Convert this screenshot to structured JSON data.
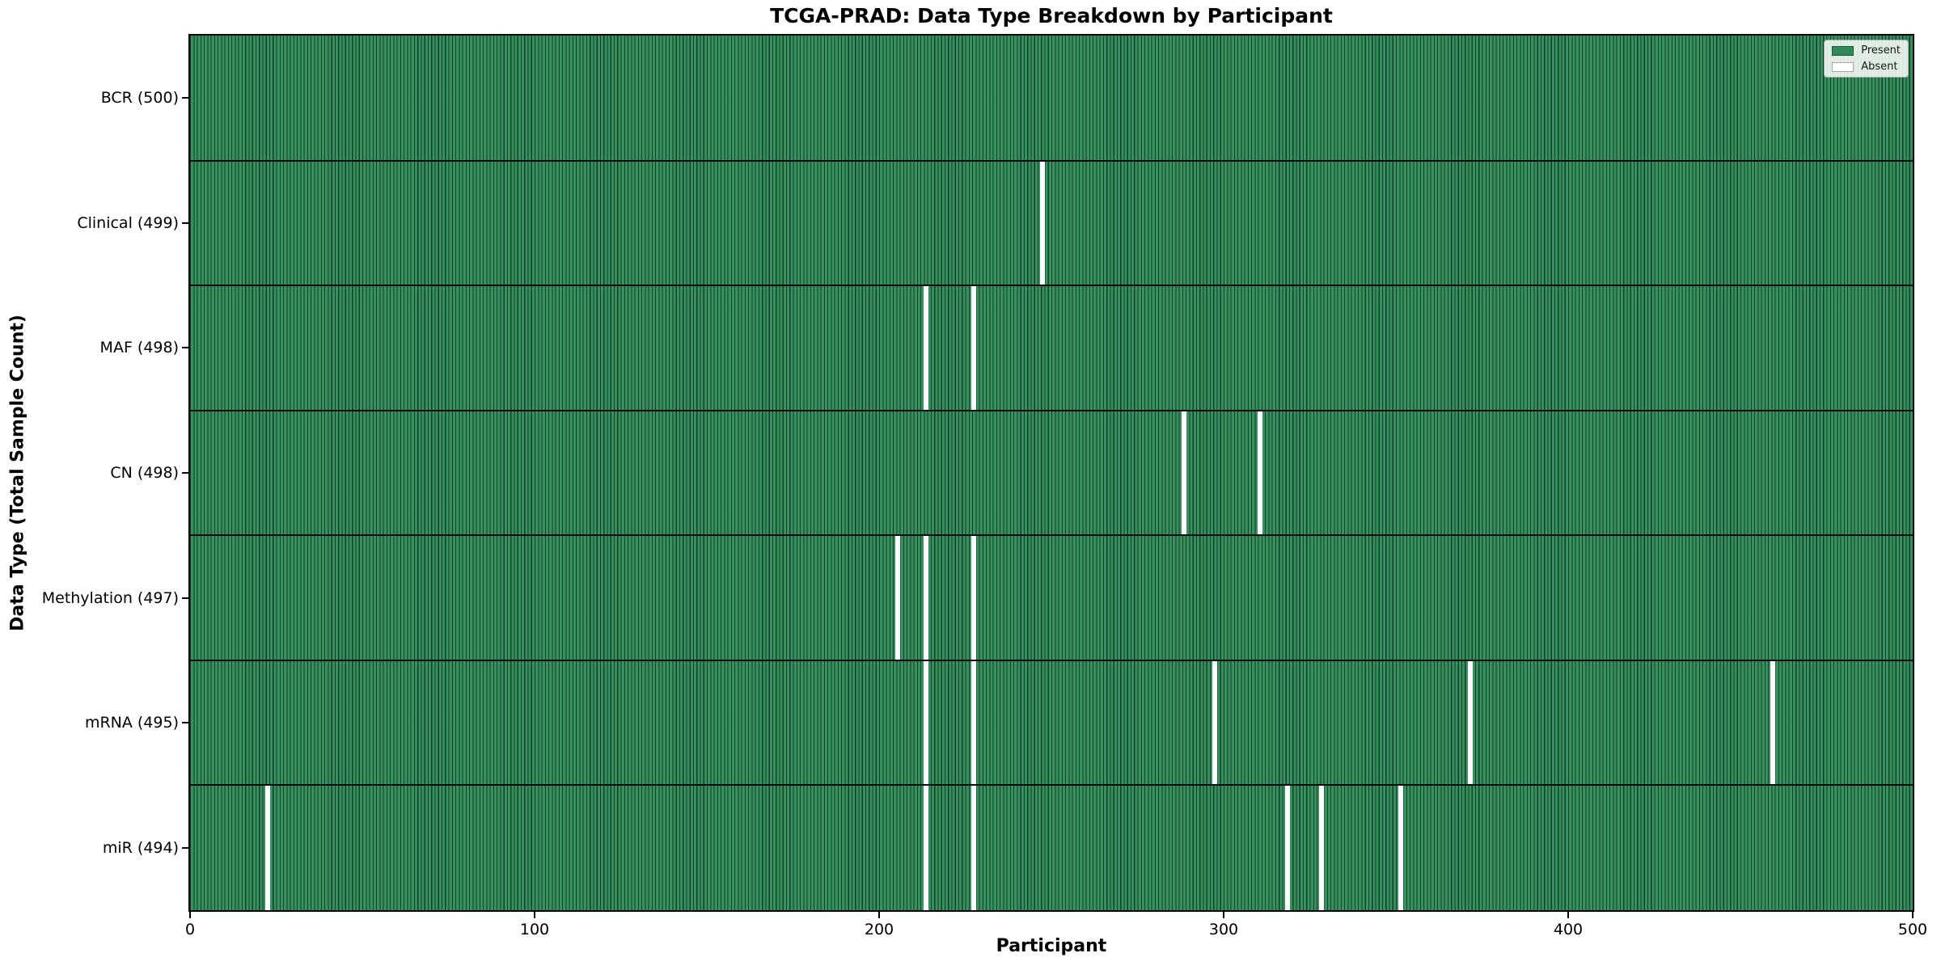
{
  "title": "TCGA-PRAD: Data Type Breakdown by Participant",
  "axes": {
    "x_label": "Participant",
    "y_label": "Data Type (Total Sample Count)",
    "x_ticks": [
      0,
      100,
      200,
      300,
      400,
      500
    ],
    "x_range": [
      0,
      500
    ]
  },
  "legend": {
    "items": [
      {
        "label": "Present",
        "color": "#2e8b57"
      },
      {
        "label": "Absent",
        "color": "#ffffff"
      }
    ]
  },
  "colors": {
    "present_fill": "#2e8b57",
    "present_edge": "#14482e",
    "absent_fill": "#ffffff",
    "divider": "#0a0a0a",
    "background": "#ffffff"
  },
  "chart_data": {
    "type": "heatmap",
    "title": "TCGA-PRAD: Data Type Breakdown by Participant",
    "xlabel": "Participant",
    "ylabel": "Data Type (Total Sample Count)",
    "x_range": [
      0,
      500
    ],
    "n_participants": 500,
    "x_tick_values": [
      0,
      100,
      200,
      300,
      400,
      500
    ],
    "legend_entries": [
      "Present",
      "Absent"
    ],
    "grid": false,
    "legend_position": "upper right",
    "rows": [
      {
        "name": "BCR",
        "label": "BCR (500)",
        "total": 500,
        "absent_participants": []
      },
      {
        "name": "Clinical",
        "label": "Clinical (499)",
        "total": 499,
        "absent_participants": [
          247
        ]
      },
      {
        "name": "MAF",
        "label": "MAF (498)",
        "total": 498,
        "absent_participants": [
          213,
          227
        ]
      },
      {
        "name": "CN",
        "label": "CN (498)",
        "total": 498,
        "absent_participants": [
          288,
          310
        ]
      },
      {
        "name": "Methylation",
        "label": "Methylation (497)",
        "total": 497,
        "absent_participants": [
          205,
          213,
          227
        ]
      },
      {
        "name": "mRNA",
        "label": "mRNA (495)",
        "total": 495,
        "absent_participants": [
          213,
          227,
          297,
          371,
          459
        ]
      },
      {
        "name": "miR",
        "label": "miR (494)",
        "total": 494,
        "absent_participants": [
          22,
          213,
          227,
          318,
          328,
          351
        ]
      }
    ]
  }
}
